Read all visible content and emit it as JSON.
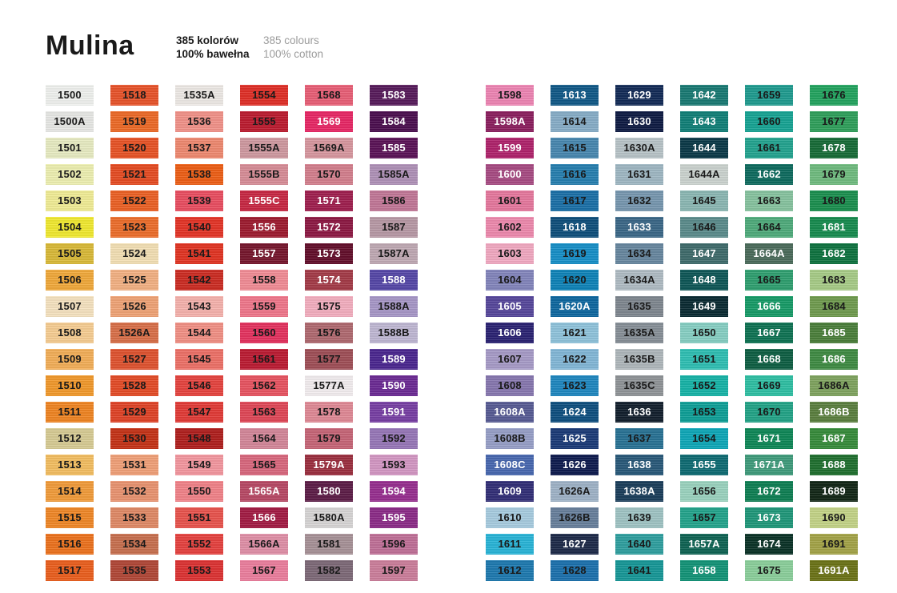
{
  "header": {
    "title": "Mulina",
    "pl": {
      "line1": "385 kolorów",
      "line2": "100% bawełna"
    },
    "en": {
      "line1": "385 colours",
      "line2": "100% cotton"
    }
  },
  "colors": {
    "page_bg": "#ffffff",
    "title_color": "#1a1a1a",
    "subtitle_gray": "#9b9b9b",
    "code_text_dark": "#1a1a1a",
    "code_text_light": "#ffffff"
  },
  "palette": {
    "left_columns": [
      [
        [
          "1500",
          "#eff1ee",
          "k"
        ],
        [
          "1500A",
          "#e7e8e5",
          "k"
        ],
        [
          "1501",
          "#e7ebc2",
          "k"
        ],
        [
          "1502",
          "#edefb1",
          "k"
        ],
        [
          "1503",
          "#f0ec95",
          "k"
        ],
        [
          "1504",
          "#f0e930",
          "k"
        ],
        [
          "1505",
          "#d9b938",
          "k"
        ],
        [
          "1506",
          "#f0a83a",
          "k"
        ],
        [
          "1507",
          "#f5e2c0",
          "k"
        ],
        [
          "1508",
          "#f6cd92",
          "k"
        ],
        [
          "1509",
          "#f2ae58",
          "k"
        ],
        [
          "1510",
          "#f1992c",
          "k"
        ],
        [
          "1511",
          "#ef8523",
          "k"
        ],
        [
          "1512",
          "#d7cb94",
          "k"
        ],
        [
          "1513",
          "#f3be60",
          "k"
        ],
        [
          "1514",
          "#f19c3a",
          "k"
        ],
        [
          "1515",
          "#ef8727",
          "k"
        ],
        [
          "1516",
          "#ec721e",
          "k"
        ],
        [
          "1517",
          "#ea5f1e",
          "k"
        ]
      ],
      [
        [
          "1518",
          "#e7532a",
          "k"
        ],
        [
          "1519",
          "#ec6a27",
          "k"
        ],
        [
          "1520",
          "#e75326",
          "k"
        ],
        [
          "1521",
          "#e54c23",
          "k"
        ],
        [
          "1522",
          "#eb6125",
          "k"
        ],
        [
          "1523",
          "#ec6d2b",
          "k"
        ],
        [
          "1524",
          "#f2dfb4",
          "k"
        ],
        [
          "1525",
          "#f2b083",
          "k"
        ],
        [
          "1526",
          "#efa376",
          "k"
        ],
        [
          "1526A",
          "#d86f49",
          "k"
        ],
        [
          "1527",
          "#df5330",
          "k"
        ],
        [
          "1528",
          "#e34c27",
          "k"
        ],
        [
          "1529",
          "#df4327",
          "k"
        ],
        [
          "1530",
          "#c43317",
          "k"
        ],
        [
          "1531",
          "#f0a078",
          "k"
        ],
        [
          "1532",
          "#e99371",
          "k"
        ],
        [
          "1533",
          "#df8966",
          "k"
        ],
        [
          "1534",
          "#c76f4f",
          "k"
        ],
        [
          "1535",
          "#b04737",
          "k"
        ]
      ],
      [
        [
          "1535A",
          "#ede9e5",
          "k"
        ],
        [
          "1536",
          "#f19289",
          "k"
        ],
        [
          "1537",
          "#ee8870",
          "k"
        ],
        [
          "1538",
          "#ed5e16",
          "k"
        ],
        [
          "1539",
          "#e94e61",
          "k"
        ],
        [
          "1540",
          "#e33427",
          "k"
        ],
        [
          "1541",
          "#e13423",
          "k"
        ],
        [
          "1542",
          "#cb2c23",
          "k"
        ],
        [
          "1543",
          "#f5b2ac",
          "k"
        ],
        [
          "1544",
          "#f19085",
          "k"
        ],
        [
          "1545",
          "#ed7167",
          "k"
        ],
        [
          "1546",
          "#e5443f",
          "k"
        ],
        [
          "1547",
          "#e13b37",
          "k"
        ],
        [
          "1548",
          "#af1f1e",
          "k"
        ],
        [
          "1549",
          "#f3979f",
          "k"
        ],
        [
          "1550",
          "#f18389",
          "k"
        ],
        [
          "1551",
          "#e8534d",
          "k"
        ],
        [
          "1552",
          "#e5423f",
          "k"
        ],
        [
          "1553",
          "#dc3333",
          "k"
        ]
      ],
      [
        [
          "1554",
          "#df2f27",
          "k"
        ],
        [
          "1555",
          "#bb1c2f",
          "k"
        ],
        [
          "1555A",
          "#cf99a0",
          "k"
        ],
        [
          "1555B",
          "#d78d97",
          "k"
        ],
        [
          "1555C",
          "#c72843",
          "w"
        ],
        [
          "1556",
          "#9d1c2f",
          "w"
        ],
        [
          "1557",
          "#76172d",
          "w"
        ],
        [
          "1558",
          "#f18c95",
          "k"
        ],
        [
          "1559",
          "#ef778b",
          "k"
        ],
        [
          "1560",
          "#e3325f",
          "k"
        ],
        [
          "1561",
          "#bb1c33",
          "k"
        ],
        [
          "1562",
          "#e75460",
          "k"
        ],
        [
          "1563",
          "#df4757",
          "k"
        ],
        [
          "1564",
          "#d38699",
          "k"
        ],
        [
          "1565",
          "#d8677d",
          "k"
        ],
        [
          "1565A",
          "#b74965",
          "w"
        ],
        [
          "1566",
          "#a21b43",
          "w"
        ],
        [
          "1566A",
          "#df8fa7",
          "k"
        ],
        [
          "1567",
          "#eb7e9d",
          "k"
        ]
      ],
      [
        [
          "1568",
          "#e85e76",
          "k"
        ],
        [
          "1569",
          "#e72765",
          "w"
        ],
        [
          "1569A",
          "#d7979f",
          "k"
        ],
        [
          "1570",
          "#d37f8d",
          "k"
        ],
        [
          "1571",
          "#9f1f4f",
          "w"
        ],
        [
          "1572",
          "#8d1943",
          "w"
        ],
        [
          "1573",
          "#630f2b",
          "w"
        ],
        [
          "1574",
          "#a33b47",
          "w"
        ],
        [
          "1575",
          "#f3aebf",
          "k"
        ],
        [
          "1576",
          "#af696f",
          "k"
        ],
        [
          "1577",
          "#9f4f57",
          "k"
        ],
        [
          "1577A",
          "#f2edef",
          "k"
        ],
        [
          "1578",
          "#df8995",
          "k"
        ],
        [
          "1579",
          "#c66577",
          "k"
        ],
        [
          "1579A",
          "#9b2f3f",
          "w"
        ],
        [
          "1580",
          "#5d1d47",
          "w"
        ],
        [
          "1580A",
          "#d7d5d5",
          "k"
        ],
        [
          "1581",
          "#a79197",
          "k"
        ],
        [
          "1582",
          "#7d6977",
          "k"
        ]
      ],
      [
        [
          "1583",
          "#571b5b",
          "w"
        ],
        [
          "1584",
          "#4b0f4f",
          "w"
        ],
        [
          "1585",
          "#5b1357",
          "w"
        ],
        [
          "1585A",
          "#af91b7",
          "k"
        ],
        [
          "1586",
          "#c17797",
          "k"
        ],
        [
          "1587",
          "#b799a5",
          "k"
        ],
        [
          "1587A",
          "#bfa9b3",
          "k"
        ],
        [
          "1588",
          "#5547a7",
          "w"
        ],
        [
          "1588A",
          "#a797c7",
          "k"
        ],
        [
          "1588B",
          "#bfb7d3",
          "k"
        ],
        [
          "1589",
          "#4b278f",
          "w"
        ],
        [
          "1590",
          "#6b2b93",
          "w"
        ],
        [
          "1591",
          "#773fa3",
          "w"
        ],
        [
          "1592",
          "#9777b7",
          "k"
        ],
        [
          "1593",
          "#d397c3",
          "k"
        ],
        [
          "1594",
          "#972f8f",
          "w"
        ],
        [
          "1595",
          "#8b2b87",
          "w"
        ],
        [
          "1596",
          "#bf6f97",
          "k"
        ],
        [
          "1597",
          "#cb7e9b",
          "k"
        ]
      ]
    ],
    "right_columns": [
      [
        [
          "1598",
          "#ed84b3",
          "k"
        ],
        [
          "1598A",
          "#8b1f5f",
          "w"
        ],
        [
          "1599",
          "#af236b",
          "w"
        ],
        [
          "1600",
          "#a74b83",
          "w"
        ],
        [
          "1601",
          "#e5789d",
          "k"
        ],
        [
          "1602",
          "#ed89ad",
          "k"
        ],
        [
          "1603",
          "#f1a8c1",
          "k"
        ],
        [
          "1604",
          "#8385bb",
          "k"
        ],
        [
          "1605",
          "#57479b",
          "w"
        ],
        [
          "1606",
          "#2b2373",
          "w"
        ],
        [
          "1607",
          "#a79bc7",
          "k"
        ],
        [
          "1608",
          "#8777af",
          "k"
        ],
        [
          "1608A",
          "#575b93",
          "w"
        ],
        [
          "1608B",
          "#979fc7",
          "k"
        ],
        [
          "1608C",
          "#4767af",
          "w"
        ],
        [
          "1609",
          "#332f77",
          "w"
        ],
        [
          "1610",
          "#a7cbdf",
          "k"
        ],
        [
          "1611",
          "#29b4d7",
          "k"
        ],
        [
          "1612",
          "#1e79af",
          "k"
        ]
      ],
      [
        [
          "1613",
          "#115987",
          "w"
        ],
        [
          "1614",
          "#87adc7",
          "k"
        ],
        [
          "1615",
          "#4787af",
          "k"
        ],
        [
          "1616",
          "#277faf",
          "k"
        ],
        [
          "1617",
          "#1b6fa7",
          "k"
        ],
        [
          "1618",
          "#0f4f7b",
          "w"
        ],
        [
          "1619",
          "#178fc7",
          "k"
        ],
        [
          "1620",
          "#0f83b7",
          "k"
        ],
        [
          "1620A",
          "#0f679f",
          "w"
        ],
        [
          "1621",
          "#8fc3db",
          "k"
        ],
        [
          "1622",
          "#83b7d7",
          "k"
        ],
        [
          "1623",
          "#1f87bf",
          "k"
        ],
        [
          "1624",
          "#0f4f7f",
          "w"
        ],
        [
          "1625",
          "#1b3b77",
          "w"
        ],
        [
          "1626",
          "#0f1b4f",
          "w"
        ],
        [
          "1626A",
          "#9fb3c7",
          "k"
        ],
        [
          "1626B",
          "#677f9b",
          "k"
        ],
        [
          "1627",
          "#1e2a49",
          "w"
        ],
        [
          "1628",
          "#1c71ad",
          "k"
        ]
      ],
      [
        [
          "1629",
          "#132b57",
          "w"
        ],
        [
          "1630",
          "#0f1b43",
          "w"
        ],
        [
          "1630A",
          "#b7c3c7",
          "k"
        ],
        [
          "1631",
          "#9fb7c3",
          "k"
        ],
        [
          "1632",
          "#7797af",
          "k"
        ],
        [
          "1633",
          "#3b6787",
          "w"
        ],
        [
          "1634",
          "#67879f",
          "k"
        ],
        [
          "1634A",
          "#afbbc3",
          "k"
        ],
        [
          "1635",
          "#7f878f",
          "k"
        ],
        [
          "1635A",
          "#878f97",
          "k"
        ],
        [
          "1635B",
          "#afb7bb",
          "k"
        ],
        [
          "1635C",
          "#8f9397",
          "k"
        ],
        [
          "1636",
          "#121f2d",
          "w"
        ],
        [
          "1637",
          "#297294",
          "k"
        ],
        [
          "1638",
          "#295979",
          "w"
        ],
        [
          "1638A",
          "#1b3e5b",
          "w"
        ],
        [
          "1639",
          "#9fc3c3",
          "k"
        ],
        [
          "1640",
          "#2f9f9f",
          "k"
        ],
        [
          "1641",
          "#179797",
          "k"
        ]
      ],
      [
        [
          "1642",
          "#197973",
          "w"
        ],
        [
          "1643",
          "#117f77",
          "w"
        ],
        [
          "1644",
          "#0b3947",
          "w"
        ],
        [
          "1644A",
          "#cbd3cf",
          "k"
        ],
        [
          "1645",
          "#8bb7b3",
          "k"
        ],
        [
          "1646",
          "#5b8b8b",
          "k"
        ],
        [
          "1647",
          "#3f6b6b",
          "w"
        ],
        [
          "1648",
          "#0f5757",
          "w"
        ],
        [
          "1649",
          "#0b2b33",
          "w"
        ],
        [
          "1650",
          "#87cfc3",
          "k"
        ],
        [
          "1651",
          "#2fbfb3",
          "k"
        ],
        [
          "1652",
          "#17b3a7",
          "k"
        ],
        [
          "1653",
          "#0f9f97",
          "k"
        ],
        [
          "1654",
          "#0fa7b7",
          "k"
        ],
        [
          "1655",
          "#0f6b73",
          "w"
        ],
        [
          "1656",
          "#9bd3bf",
          "k"
        ],
        [
          "1657",
          "#23a38b",
          "k"
        ],
        [
          "1657A",
          "#0f6353",
          "w"
        ],
        [
          "1658",
          "#139377",
          "w"
        ]
      ],
      [
        [
          "1659",
          "#1f9b8f",
          "k"
        ],
        [
          "1660",
          "#17a393",
          "k"
        ],
        [
          "1661",
          "#23a38f",
          "k"
        ],
        [
          "1662",
          "#0f6b5f",
          "w"
        ],
        [
          "1663",
          "#87c39f",
          "k"
        ],
        [
          "1664",
          "#4fab7b",
          "k"
        ],
        [
          "1664A",
          "#4b6b5b",
          "w"
        ],
        [
          "1665",
          "#2f9f6f",
          "k"
        ],
        [
          "1666",
          "#179b67",
          "w"
        ],
        [
          "1667",
          "#0f7353",
          "w"
        ],
        [
          "1668",
          "#0f5f43",
          "w"
        ],
        [
          "1669",
          "#2fbfa3",
          "k"
        ],
        [
          "1670",
          "#23a387",
          "k"
        ],
        [
          "1671",
          "#0f8757",
          "w"
        ],
        [
          "1671A",
          "#3f9b7b",
          "w"
        ],
        [
          "1672",
          "#0f7f53",
          "w"
        ],
        [
          "1673",
          "#1f9779",
          "w"
        ],
        [
          "1674",
          "#0b3327",
          "w"
        ],
        [
          "1675",
          "#8bcf9b",
          "k"
        ]
      ],
      [
        [
          "1676",
          "#23a35f",
          "k"
        ],
        [
          "1677",
          "#2f9f5b",
          "k"
        ],
        [
          "1678",
          "#176b37",
          "w"
        ],
        [
          "1679",
          "#6fbb7f",
          "k"
        ],
        [
          "1680",
          "#1b8f4f",
          "k"
        ],
        [
          "1681",
          "#178b4f",
          "w"
        ],
        [
          "1682",
          "#0f7340",
          "w"
        ],
        [
          "1683",
          "#a7cb87",
          "k"
        ],
        [
          "1684",
          "#6f9b4f",
          "k"
        ],
        [
          "1685",
          "#4b7f3b",
          "w"
        ],
        [
          "1686",
          "#3f8b43",
          "w"
        ],
        [
          "1686A",
          "#7fa35f",
          "k"
        ],
        [
          "1686B",
          "#5b7f3f",
          "w"
        ],
        [
          "1687",
          "#378b3b",
          "w"
        ],
        [
          "1688",
          "#1f6f2f",
          "w"
        ],
        [
          "1689",
          "#132717",
          "w"
        ],
        [
          "1690",
          "#c3d387",
          "k"
        ],
        [
          "1691",
          "#a3a347",
          "k"
        ],
        [
          "1691A",
          "#6b7317",
          "w"
        ]
      ]
    ]
  }
}
